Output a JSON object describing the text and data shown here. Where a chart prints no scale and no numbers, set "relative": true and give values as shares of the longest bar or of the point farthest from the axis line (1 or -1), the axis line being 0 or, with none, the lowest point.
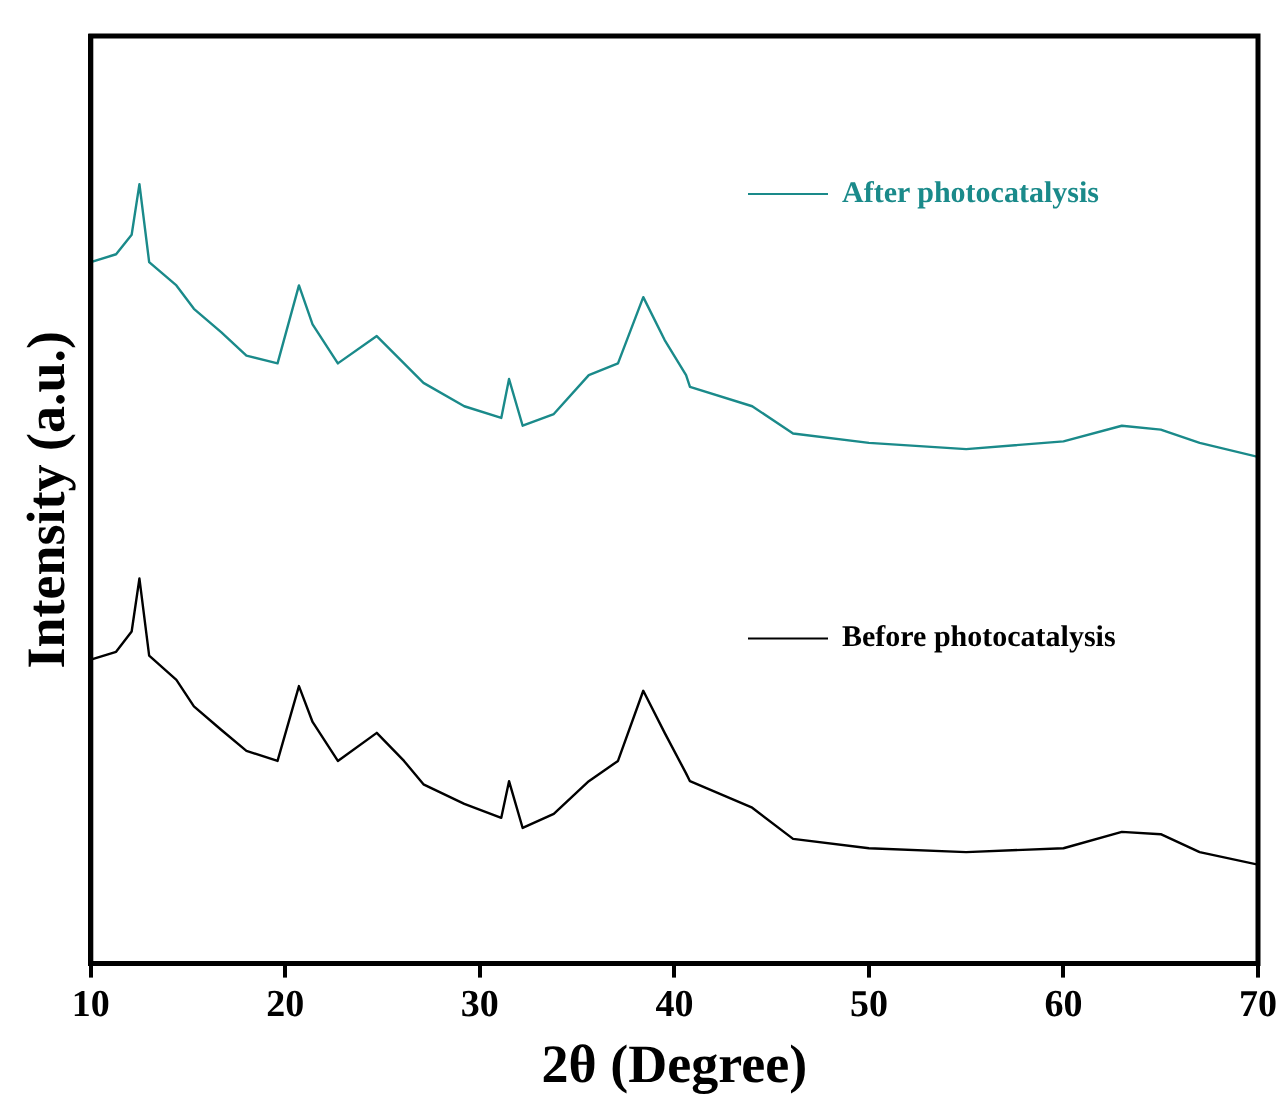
{
  "chart_data": {
    "type": "line",
    "relative": true,
    "xlabel": "2θ (Degree)",
    "ylabel": "Intensity (a.u.)",
    "xlim": [
      10,
      70
    ],
    "xticks": [
      10,
      20,
      30,
      40,
      50,
      60,
      70
    ],
    "grid": false,
    "legend": "right",
    "marker": "none",
    "line_style": "solid",
    "x": [
      10,
      11.3,
      12.1,
      12.5,
      13.0,
      14.4,
      15.3,
      16.7,
      18.0,
      19.6,
      20.7,
      21.4,
      22.7,
      24.7,
      26.1,
      27.1,
      29.2,
      31.1,
      31.5,
      32.2,
      33.8,
      35.6,
      37.1,
      38.4,
      39.5,
      40.6,
      40.8,
      44.0,
      46.1,
      50,
      55,
      60,
      63,
      65,
      67,
      70
    ],
    "series": [
      {
        "name": "After photocatalysis",
        "color": "#1a8a8a",
        "values": [
          0.9,
          0.91,
          0.935,
          1.0,
          0.9,
          0.87,
          0.84,
          0.81,
          0.78,
          0.77,
          0.87,
          0.82,
          0.77,
          0.805,
          0.77,
          0.745,
          0.715,
          0.7,
          0.75,
          0.69,
          0.705,
          0.755,
          0.77,
          0.855,
          0.8,
          0.755,
          0.74,
          0.715,
          0.68,
          0.668,
          0.66,
          0.67,
          0.69,
          0.685,
          0.668,
          0.65
        ]
      },
      {
        "name": "Before photocatalysis",
        "color": "#000000",
        "values": [
          0.39,
          0.4,
          0.426,
          0.494,
          0.395,
          0.364,
          0.33,
          0.3,
          0.273,
          0.26,
          0.356,
          0.31,
          0.26,
          0.296,
          0.26,
          0.23,
          0.205,
          0.187,
          0.234,
          0.174,
          0.192,
          0.234,
          0.26,
          0.35,
          0.296,
          0.244,
          0.234,
          0.2,
          0.16,
          0.148,
          0.143,
          0.148,
          0.169,
          0.166,
          0.143,
          0.127
        ]
      }
    ]
  }
}
